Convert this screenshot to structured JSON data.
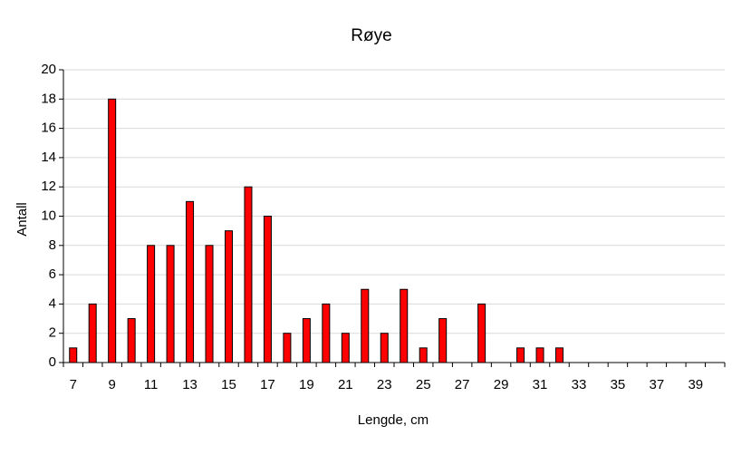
{
  "chart_data": {
    "type": "bar",
    "title": "Røye",
    "x_label": "Lengde, cm",
    "y_label": "Antall",
    "categories": [
      "7",
      null,
      "9",
      null,
      "11",
      null,
      "13",
      null,
      "15",
      null,
      "17",
      null,
      "19",
      null,
      "21",
      null,
      "23",
      null,
      "25",
      null,
      "27",
      null,
      "29",
      null,
      "31",
      null,
      "33",
      null,
      "35",
      null,
      "37",
      null,
      "39",
      null
    ],
    "values": [
      1,
      4,
      18,
      3,
      8,
      8,
      11,
      8,
      9,
      12,
      10,
      2,
      3,
      4,
      2,
      5,
      2,
      5,
      1,
      3,
      0,
      4,
      0,
      1,
      1,
      1,
      0,
      0,
      0,
      0,
      0,
      0,
      0,
      0
    ],
    "color": "#ff0000",
    "ylim": [
      0,
      20
    ],
    "yticks": [
      0,
      2,
      4,
      6,
      8,
      10,
      12,
      14,
      16,
      18,
      20
    ],
    "grid": true
  }
}
